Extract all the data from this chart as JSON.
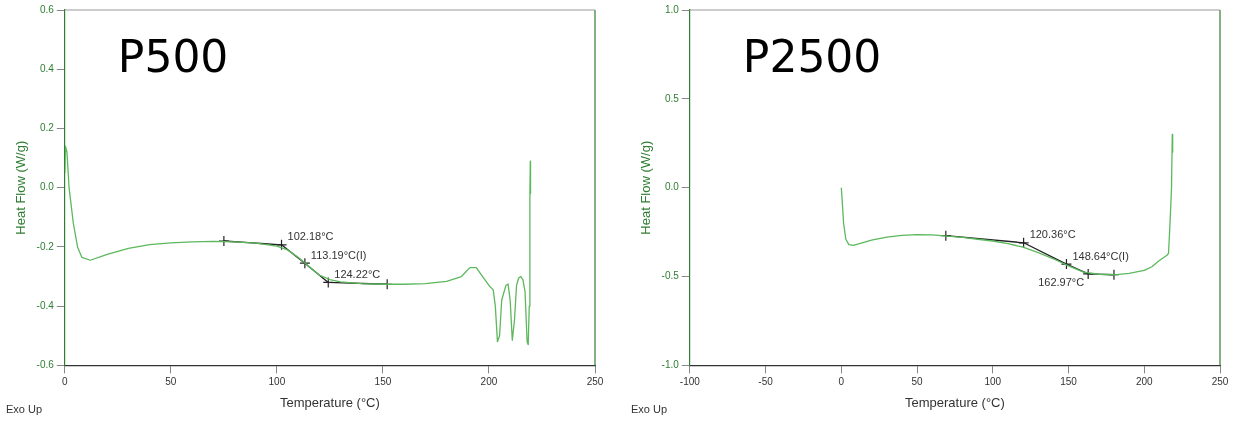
{
  "chart_data": [
    {
      "type": "line",
      "title": "P500",
      "xlabel": "Temperature (°C)",
      "ylabel": "Heat Flow (W/g)",
      "xlim": [
        0,
        250
      ],
      "xticks": [
        0,
        50,
        100,
        150,
        200,
        250
      ],
      "ylim": [
        -0.6,
        0.6
      ],
      "yticks": [
        -0.6,
        -0.4,
        -0.2,
        {
          "value": 0,
          "label": "0.0"
        },
        0.2,
        0.4,
        0.6
      ],
      "grid": false,
      "legend": false,
      "series": [
        {
          "color": "#5cb85c",
          "marker": "none",
          "x": [
            0,
            0.3,
            1,
            2,
            4,
            6,
            8,
            12,
            20,
            30,
            40,
            50,
            60,
            70,
            80,
            90,
            100,
            105,
            110,
            115,
            120,
            125,
            130,
            140,
            150,
            160,
            170,
            180,
            187,
            191,
            194,
            197,
            200,
            202,
            203,
            204,
            205,
            206,
            208,
            209,
            210,
            211,
            212,
            213,
            214,
            215,
            216,
            217,
            218,
            218.5,
            219,
            219.3,
            219.5,
            219.6
          ],
          "values": [
            0.05,
            0.14,
            0.12,
            0.0,
            -0.12,
            -0.2,
            -0.235,
            -0.245,
            -0.225,
            -0.205,
            -0.192,
            -0.186,
            -0.183,
            -0.181,
            -0.183,
            -0.187,
            -0.197,
            -0.21,
            -0.235,
            -0.265,
            -0.295,
            -0.31,
            -0.318,
            -0.324,
            -0.326,
            -0.326,
            -0.324,
            -0.316,
            -0.3,
            -0.27,
            -0.27,
            -0.3,
            -0.33,
            -0.345,
            -0.4,
            -0.52,
            -0.5,
            -0.38,
            -0.33,
            -0.325,
            -0.38,
            -0.515,
            -0.45,
            -0.33,
            -0.305,
            -0.3,
            -0.31,
            -0.35,
            -0.52,
            -0.53,
            -0.4,
            -0.02,
            0.09,
            -0.02
          ]
        },
        {
          "color": "#222222",
          "marker": "cross",
          "x": [
            75,
            102.18,
            113.19,
            124.22,
            152
          ],
          "values": [
            -0.18,
            -0.193,
            -0.255,
            -0.32,
            -0.326
          ]
        }
      ],
      "annotations": [
        "Exo Up",
        {
          "text": "102.18°C",
          "x": 102.18,
          "y": -0.193
        },
        {
          "text": "113.19°C(I)",
          "x": 113.19,
          "y": -0.255
        },
        {
          "text": "124.22°C",
          "x": 124.22,
          "y": -0.32
        }
      ]
    },
    {
      "type": "line",
      "title": "P2500",
      "xlabel": "Temperature (°C)",
      "ylabel": "Heat Flow (W/g)",
      "xlim": [
        -100,
        250
      ],
      "xticks": [
        -100,
        -50,
        0,
        50,
        100,
        150,
        200,
        250
      ],
      "ylim": [
        -1,
        1
      ],
      "yticks": [
        {
          "value": -1,
          "label": "-1.0"
        },
        -0.5,
        {
          "value": 0,
          "label": "0.0"
        },
        0.5,
        {
          "value": 1,
          "label": "1.0"
        }
      ],
      "grid": false,
      "legend": false,
      "series": [
        {
          "color": "#5cb85c",
          "marker": "none",
          "x": [
            0,
            0.5,
            1.5,
            3,
            5,
            8,
            12,
            20,
            30,
            40,
            50,
            60,
            70,
            80,
            90,
            100,
            110,
            120,
            130,
            140,
            150,
            160,
            170,
            180,
            190,
            200,
            205,
            210,
            215,
            216,
            217,
            218,
            218.5,
            218.7,
            218.8
          ],
          "values": [
            0.0,
            -0.06,
            -0.2,
            -0.29,
            -0.32,
            -0.325,
            -0.315,
            -0.295,
            -0.278,
            -0.268,
            -0.264,
            -0.266,
            -0.272,
            -0.28,
            -0.29,
            -0.3,
            -0.315,
            -0.335,
            -0.365,
            -0.4,
            -0.44,
            -0.475,
            -0.487,
            -0.49,
            -0.482,
            -0.465,
            -0.445,
            -0.41,
            -0.38,
            -0.37,
            -0.2,
            0.0,
            0.3,
            0.2,
            0.25
          ]
        },
        {
          "color": "#222222",
          "marker": "cross",
          "x": [
            69,
            120.36,
            148.64,
            162.97,
            180
          ],
          "values": [
            -0.27,
            -0.31,
            -0.43,
            -0.485,
            -0.49
          ]
        }
      ],
      "annotations": [
        "Exo Up",
        {
          "text": "120.36°C",
          "x": 120.36,
          "y": -0.31
        },
        {
          "text": "148.64°C(I)",
          "x": 148.64,
          "y": -0.43
        },
        {
          "text": "162.97°C",
          "x": 162.97,
          "y": -0.485
        }
      ]
    }
  ]
}
